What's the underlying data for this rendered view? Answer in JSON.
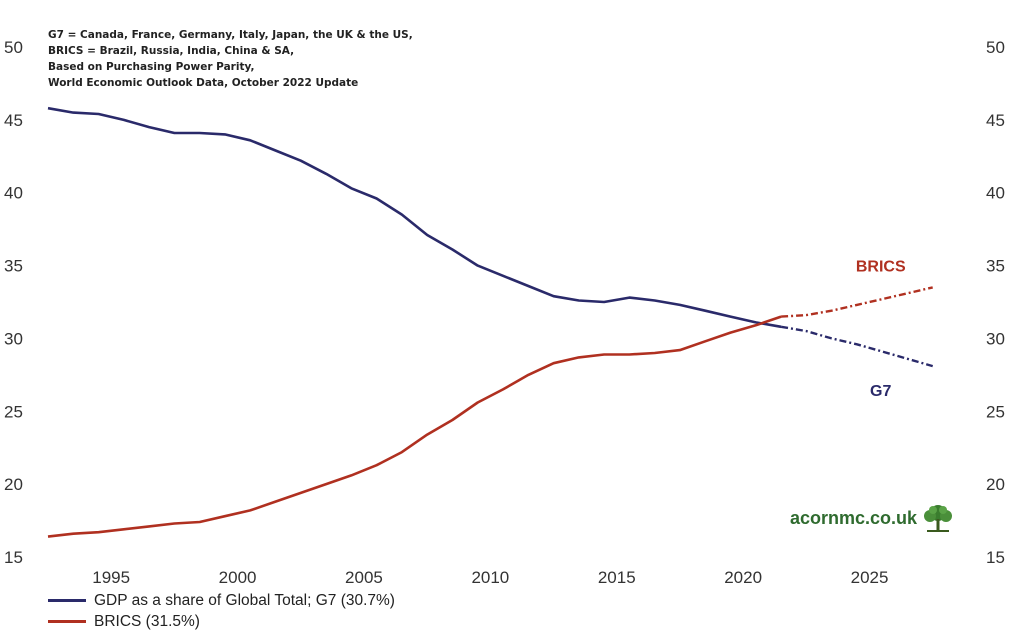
{
  "notes": [
    "G7 = Canada, France, Germany, Italy, Japan, the UK & the US,",
    "BRICS = Brazil, Russia, India, China & SA,",
    "Based on Purchasing Power Parity,",
    "World Economic Outlook Data, October 2022 Update"
  ],
  "logo": {
    "text": "acornmc.co.uk",
    "icon": "tree-icon"
  },
  "chart_data": {
    "type": "line",
    "title": "",
    "xlabel": "",
    "ylabel": "",
    "xlim": [
      1992.5,
      2028.5
    ],
    "ylim": [
      15,
      50
    ],
    "y_ticks": [
      15,
      20,
      25,
      30,
      35,
      40,
      45,
      50
    ],
    "x_ticks": [
      1995,
      2000,
      2005,
      2010,
      2015,
      2020,
      2025
    ],
    "grid": false,
    "legend_position": "bottom-left",
    "forecast_start": 2022,
    "series": [
      {
        "name": "GDP as a share of Global Total; G7 (30.7%)",
        "label": "G7",
        "color": "#2a2a6a",
        "x": [
          1992.5,
          1993.5,
          1994.5,
          1995.5,
          1996.5,
          1997.5,
          1998.5,
          1999.5,
          2000.5,
          2001.5,
          2002.5,
          2003.5,
          2004.5,
          2005.5,
          2006.5,
          2007.5,
          2008.5,
          2009.5,
          2010.5,
          2011.5,
          2012.5,
          2013.5,
          2014.5,
          2015.5,
          2016.5,
          2017.5,
          2018.5,
          2019.5,
          2020.5,
          2021.5,
          2022.5,
          2023.5,
          2024.5,
          2025.5,
          2026.5,
          2027.5
        ],
        "values": [
          45.8,
          45.5,
          45.4,
          45.0,
          44.5,
          44.1,
          44.1,
          44.0,
          43.6,
          42.9,
          42.2,
          41.3,
          40.3,
          39.6,
          38.5,
          37.1,
          36.1,
          35.0,
          34.3,
          33.6,
          32.9,
          32.6,
          32.5,
          32.8,
          32.6,
          32.3,
          31.9,
          31.5,
          31.1,
          30.8,
          30.5,
          30.0,
          29.6,
          29.1,
          28.6,
          28.1
        ]
      },
      {
        "name": "BRICS (31.5%)",
        "label": "BRICS",
        "color": "#b03020",
        "x": [
          1992.5,
          1993.5,
          1994.5,
          1995.5,
          1996.5,
          1997.5,
          1998.5,
          1999.5,
          2000.5,
          2001.5,
          2002.5,
          2003.5,
          2004.5,
          2005.5,
          2006.5,
          2007.5,
          2008.5,
          2009.5,
          2010.5,
          2011.5,
          2012.5,
          2013.5,
          2014.5,
          2015.5,
          2016.5,
          2017.5,
          2018.5,
          2019.5,
          2020.5,
          2021.5,
          2022.5,
          2023.5,
          2024.5,
          2025.5,
          2026.5,
          2027.5
        ],
        "values": [
          16.4,
          16.6,
          16.7,
          16.9,
          17.1,
          17.3,
          17.4,
          17.8,
          18.2,
          18.8,
          19.4,
          20.0,
          20.6,
          21.3,
          22.2,
          23.4,
          24.4,
          25.6,
          26.5,
          27.5,
          28.3,
          28.7,
          28.9,
          28.9,
          29.0,
          29.2,
          29.8,
          30.4,
          30.9,
          31.5,
          31.6,
          31.9,
          32.3,
          32.7,
          33.1,
          33.5
        ]
      }
    ]
  }
}
